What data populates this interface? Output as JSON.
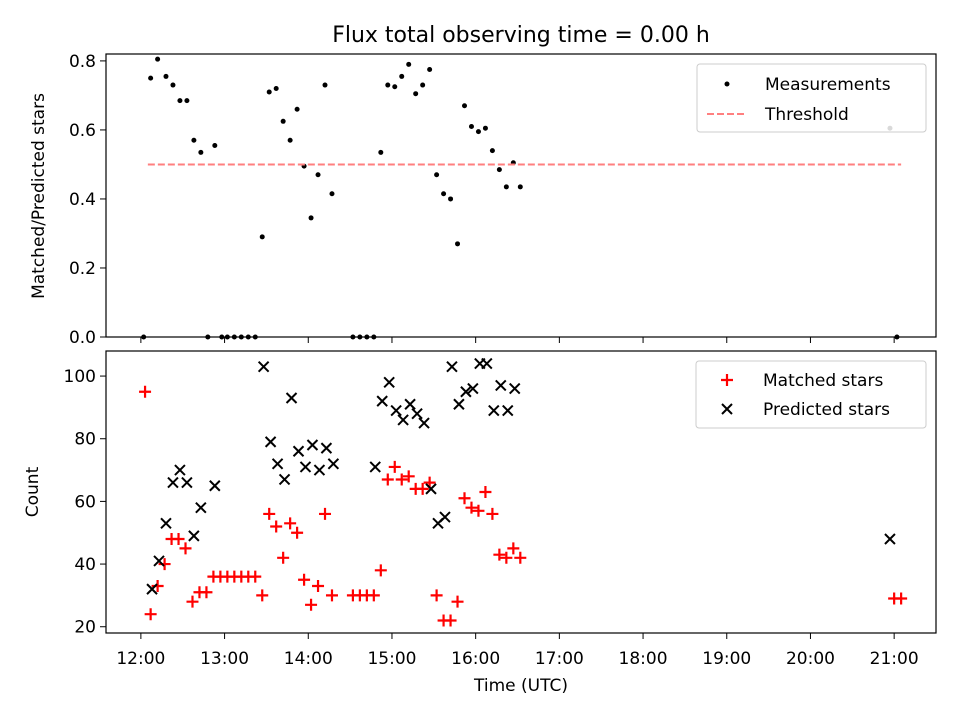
{
  "chart_data": [
    {
      "type": "scatter",
      "title": "Flux total observing time = 0.00 h",
      "ylabel": "Matched/Predicted stars",
      "xlim": [
        "11:35",
        "21:30"
      ],
      "ylim": [
        0,
        0.82
      ],
      "yticks": [
        "0.0",
        "0.2",
        "0.4",
        "0.6",
        "0.8"
      ],
      "legend_position": "top-right",
      "series": [
        {
          "name": "Measurements",
          "kind": "point",
          "color": "#000000",
          "points": [
            [
              "12:02",
              0.0
            ],
            [
              "12:07",
              0.75
            ],
            [
              "12:12",
              0.805
            ],
            [
              "12:18",
              0.755
            ],
            [
              "12:23",
              0.73
            ],
            [
              "12:28",
              0.685
            ],
            [
              "12:33",
              0.685
            ],
            [
              "12:38",
              0.57
            ],
            [
              "12:43",
              0.535
            ],
            [
              "12:48",
              0.0
            ],
            [
              "12:53",
              0.555
            ],
            [
              "12:58",
              0.0
            ],
            [
              "13:02",
              0.0
            ],
            [
              "13:07",
              0.0
            ],
            [
              "13:12",
              0.0
            ],
            [
              "13:17",
              0.0
            ],
            [
              "13:22",
              0.0
            ],
            [
              "13:27",
              0.29
            ],
            [
              "13:32",
              0.71
            ],
            [
              "13:37",
              0.72
            ],
            [
              "13:42",
              0.625
            ],
            [
              "13:47",
              0.57
            ],
            [
              "13:52",
              0.66
            ],
            [
              "13:57",
              0.495
            ],
            [
              "14:02",
              0.345
            ],
            [
              "14:07",
              0.47
            ],
            [
              "14:12",
              0.73
            ],
            [
              "14:17",
              0.415
            ],
            [
              "14:32",
              0.0
            ],
            [
              "14:37",
              0.0
            ],
            [
              "14:42",
              0.0
            ],
            [
              "14:47",
              0.0
            ],
            [
              "14:52",
              0.535
            ],
            [
              "14:57",
              0.73
            ],
            [
              "15:02",
              0.725
            ],
            [
              "15:07",
              0.755
            ],
            [
              "15:12",
              0.79
            ],
            [
              "15:17",
              0.705
            ],
            [
              "15:22",
              0.73
            ],
            [
              "15:27",
              0.775
            ],
            [
              "15:32",
              0.47
            ],
            [
              "15:37",
              0.415
            ],
            [
              "15:42",
              0.4
            ],
            [
              "15:47",
              0.27
            ],
            [
              "15:52",
              0.67
            ],
            [
              "15:57",
              0.61
            ],
            [
              "16:02",
              0.595
            ],
            [
              "16:07",
              0.605
            ],
            [
              "16:12",
              0.54
            ],
            [
              "16:17",
              0.485
            ],
            [
              "16:22",
              0.435
            ],
            [
              "16:27",
              0.505
            ],
            [
              "16:32",
              0.435
            ],
            [
              "20:57",
              0.605
            ],
            [
              "21:02",
              0.0
            ]
          ]
        },
        {
          "name": "Threshold",
          "kind": "dashed-line",
          "color": "#ff7f7f",
          "points": [
            [
              "12:05",
              0.5
            ],
            [
              "21:05",
              0.5
            ]
          ]
        }
      ]
    },
    {
      "type": "scatter",
      "xlabel": "Time (UTC)",
      "ylabel": "Count",
      "xlim": [
        "11:35",
        "21:30"
      ],
      "ylim": [
        18,
        108
      ],
      "yticks": [
        "20",
        "40",
        "60",
        "80",
        "100"
      ],
      "xticks": [
        "12:00",
        "13:00",
        "14:00",
        "15:00",
        "16:00",
        "17:00",
        "18:00",
        "19:00",
        "20:00",
        "21:00"
      ],
      "legend_position": "top-right",
      "series": [
        {
          "name": "Matched stars",
          "marker": "plus",
          "color": "#ff0000",
          "points": [
            [
              "12:03",
              95
            ],
            [
              "12:07",
              24
            ],
            [
              "12:12",
              33
            ],
            [
              "12:17",
              40
            ],
            [
              "12:22",
              48
            ],
            [
              "12:27",
              48
            ],
            [
              "12:32",
              45
            ],
            [
              "12:37",
              28
            ],
            [
              "12:42",
              31
            ],
            [
              "12:47",
              31
            ],
            [
              "12:52",
              36
            ],
            [
              "12:57",
              36
            ],
            [
              "13:02",
              36
            ],
            [
              "13:07",
              36
            ],
            [
              "13:12",
              36
            ],
            [
              "13:17",
              36
            ],
            [
              "13:22",
              36
            ],
            [
              "13:27",
              30
            ],
            [
              "13:32",
              56
            ],
            [
              "13:37",
              52
            ],
            [
              "13:42",
              42
            ],
            [
              "13:47",
              53
            ],
            [
              "13:52",
              50
            ],
            [
              "13:57",
              35
            ],
            [
              "14:02",
              27
            ],
            [
              "14:07",
              33
            ],
            [
              "14:12",
              56
            ],
            [
              "14:17",
              30
            ],
            [
              "14:32",
              30
            ],
            [
              "14:37",
              30
            ],
            [
              "14:42",
              30
            ],
            [
              "14:47",
              30
            ],
            [
              "14:52",
              38
            ],
            [
              "14:57",
              67
            ],
            [
              "15:02",
              71
            ],
            [
              "15:07",
              67
            ],
            [
              "15:12",
              68
            ],
            [
              "15:17",
              64
            ],
            [
              "15:22",
              64
            ],
            [
              "15:27",
              66
            ],
            [
              "15:32",
              30
            ],
            [
              "15:37",
              22
            ],
            [
              "15:42",
              22
            ],
            [
              "15:47",
              28
            ],
            [
              "15:52",
              61
            ],
            [
              "15:57",
              58
            ],
            [
              "16:02",
              57
            ],
            [
              "16:07",
              63
            ],
            [
              "16:12",
              56
            ],
            [
              "16:17",
              43
            ],
            [
              "16:22",
              42
            ],
            [
              "16:27",
              45
            ],
            [
              "16:32",
              42
            ],
            [
              "21:00",
              29
            ],
            [
              "21:05",
              29
            ]
          ]
        },
        {
          "name": "Predicted stars",
          "marker": "x",
          "color": "#000000",
          "points": [
            [
              "12:08",
              32
            ],
            [
              "12:13",
              41
            ],
            [
              "12:18",
              53
            ],
            [
              "12:23",
              66
            ],
            [
              "12:28",
              70
            ],
            [
              "12:33",
              66
            ],
            [
              "12:38",
              49
            ],
            [
              "12:43",
              58
            ],
            [
              "12:53",
              65
            ],
            [
              "13:28",
              103
            ],
            [
              "13:33",
              79
            ],
            [
              "13:38",
              72
            ],
            [
              "13:43",
              67
            ],
            [
              "13:48",
              93
            ],
            [
              "13:53",
              76
            ],
            [
              "13:58",
              71
            ],
            [
              "14:03",
              78
            ],
            [
              "14:08",
              70
            ],
            [
              "14:13",
              77
            ],
            [
              "14:18",
              72
            ],
            [
              "14:48",
              71
            ],
            [
              "14:53",
              92
            ],
            [
              "14:58",
              98
            ],
            [
              "15:03",
              89
            ],
            [
              "15:08",
              86
            ],
            [
              "15:13",
              91
            ],
            [
              "15:18",
              88
            ],
            [
              "15:23",
              85
            ],
            [
              "15:28",
              64
            ],
            [
              "15:33",
              53
            ],
            [
              "15:38",
              55
            ],
            [
              "15:43",
              103
            ],
            [
              "15:48",
              91
            ],
            [
              "15:53",
              95
            ],
            [
              "15:58",
              96
            ],
            [
              "16:03",
              104
            ],
            [
              "16:08",
              104
            ],
            [
              "16:13",
              89
            ],
            [
              "16:18",
              97
            ],
            [
              "16:23",
              89
            ],
            [
              "16:28",
              96
            ],
            [
              "20:57",
              48
            ]
          ]
        }
      ]
    }
  ]
}
